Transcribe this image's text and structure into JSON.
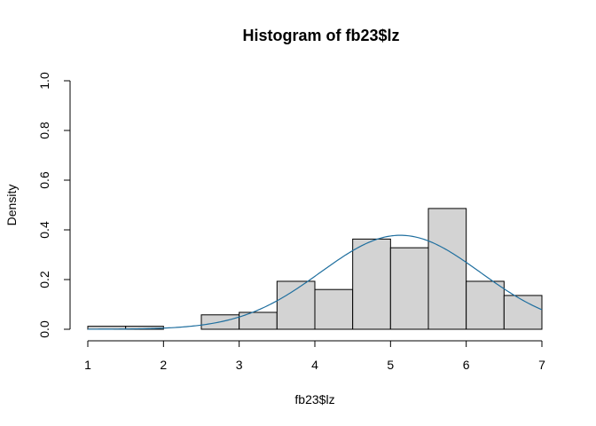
{
  "chart_data": {
    "type": "bar",
    "title": "Histogram of fb23$lz",
    "xlabel": "fb23$lz",
    "ylabel": "Density",
    "xlim": [
      1,
      7
    ],
    "ylim": [
      0,
      1
    ],
    "x_ticks": [
      1,
      2,
      3,
      4,
      5,
      6,
      7
    ],
    "x_tick_labels": [
      "1",
      "2",
      "3",
      "4",
      "5",
      "6",
      "7"
    ],
    "y_ticks": [
      0,
      0.2,
      0.4,
      0.6,
      0.8,
      1.0
    ],
    "y_tick_labels": [
      "0.0",
      "0.2",
      "0.4",
      "0.6",
      "0.8",
      "1.0"
    ],
    "bins": [
      {
        "x0": 1.0,
        "x1": 1.5,
        "density": 0.012
      },
      {
        "x0": 1.5,
        "x1": 2.0,
        "density": 0.012
      },
      {
        "x0": 2.0,
        "x1": 2.5,
        "density": 0.0
      },
      {
        "x0": 2.5,
        "x1": 3.0,
        "density": 0.058
      },
      {
        "x0": 3.0,
        "x1": 3.5,
        "density": 0.068
      },
      {
        "x0": 3.5,
        "x1": 4.0,
        "density": 0.193
      },
      {
        "x0": 4.0,
        "x1": 4.5,
        "density": 0.16
      },
      {
        "x0": 4.5,
        "x1": 5.0,
        "density": 0.363
      },
      {
        "x0": 5.0,
        "x1": 5.5,
        "density": 0.328
      },
      {
        "x0": 5.5,
        "x1": 6.0,
        "density": 0.486
      },
      {
        "x0": 6.0,
        "x1": 6.5,
        "density": 0.193
      },
      {
        "x0": 6.5,
        "x1": 7.0,
        "density": 0.136
      }
    ],
    "normal_curve": {
      "mean": 5.13,
      "sd": 1.055,
      "color": "#1f6f9f"
    },
    "bar_color": "#d3d3d3",
    "grid": false
  }
}
